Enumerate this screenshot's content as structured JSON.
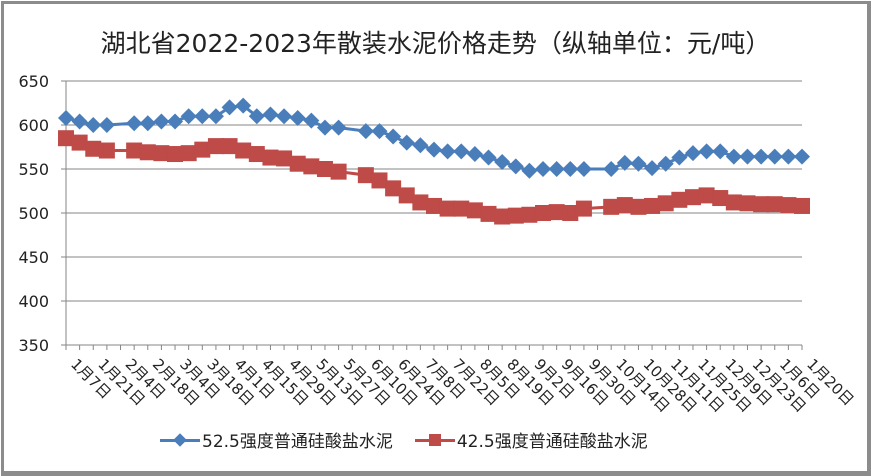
{
  "title": "湖北省2022-2023年散装水泥价格走势（纵轴单位：元/吨）",
  "colors": {
    "series1": "#4a7ebb",
    "series2": "#be4b48",
    "grid": "#868686",
    "frame": "#8c8c8c"
  },
  "legend": [
    {
      "label": "52.5强度普通硅酸盐水泥",
      "marker": "diamond",
      "color": "#4a7ebb"
    },
    {
      "label": "42.5强度普通硅酸盐水泥",
      "marker": "square",
      "color": "#be4b48"
    }
  ],
  "chart_data": {
    "type": "line",
    "title": "湖北省2022-2023年散装水泥价格走势（纵轴单位：元/吨）",
    "xlabel": "",
    "ylabel": "元/吨",
    "ylim": [
      350,
      650
    ],
    "yticks": [
      350,
      400,
      450,
      500,
      550,
      600,
      650
    ],
    "grid": true,
    "legend_position": "bottom",
    "x_tick_labels": [
      "1月7日",
      "1月21日",
      "2月4日",
      "2月18日",
      "3月4日",
      "3月18日",
      "4月1日",
      "4月15日",
      "4月29日",
      "5月13日",
      "5月27日",
      "6月10日",
      "6月24日",
      "7月8日",
      "7月22日",
      "8月5日",
      "8月19日",
      "9月2日",
      "9月16日",
      "9月30日",
      "10月14日",
      "10月28日",
      "11月11日",
      "11月25日",
      "12月9日",
      "12月23日",
      "1月6日",
      "1月20日"
    ],
    "n_points": 55,
    "series": [
      {
        "name": "52.5强度普通硅酸盐水泥",
        "marker": "diamond",
        "values": [
          608,
          604,
          600,
          600,
          null,
          602,
          602,
          604,
          604,
          610,
          610,
          610,
          620,
          622,
          610,
          612,
          610,
          608,
          605,
          597,
          597,
          null,
          593,
          593,
          587,
          580,
          577,
          572,
          570,
          570,
          567,
          563,
          558,
          553,
          548,
          550,
          550,
          550,
          550,
          null,
          550,
          557,
          556,
          551,
          556,
          563,
          568,
          570,
          570,
          564,
          564,
          564,
          564,
          564,
          564
        ]
      },
      {
        "name": "42.5强度普通硅酸盐水泥",
        "marker": "square",
        "values": [
          585,
          580,
          573,
          571,
          null,
          571,
          569,
          568,
          567,
          568,
          572,
          576,
          576,
          571,
          567,
          563,
          562,
          556,
          553,
          550,
          547,
          null,
          543,
          537,
          528,
          520,
          512,
          508,
          505,
          505,
          503,
          499,
          496,
          497,
          498,
          500,
          501,
          500,
          505,
          null,
          507,
          509,
          507,
          508,
          511,
          515,
          518,
          520,
          517,
          512,
          511,
          510,
          510,
          509,
          508
        ]
      }
    ]
  }
}
